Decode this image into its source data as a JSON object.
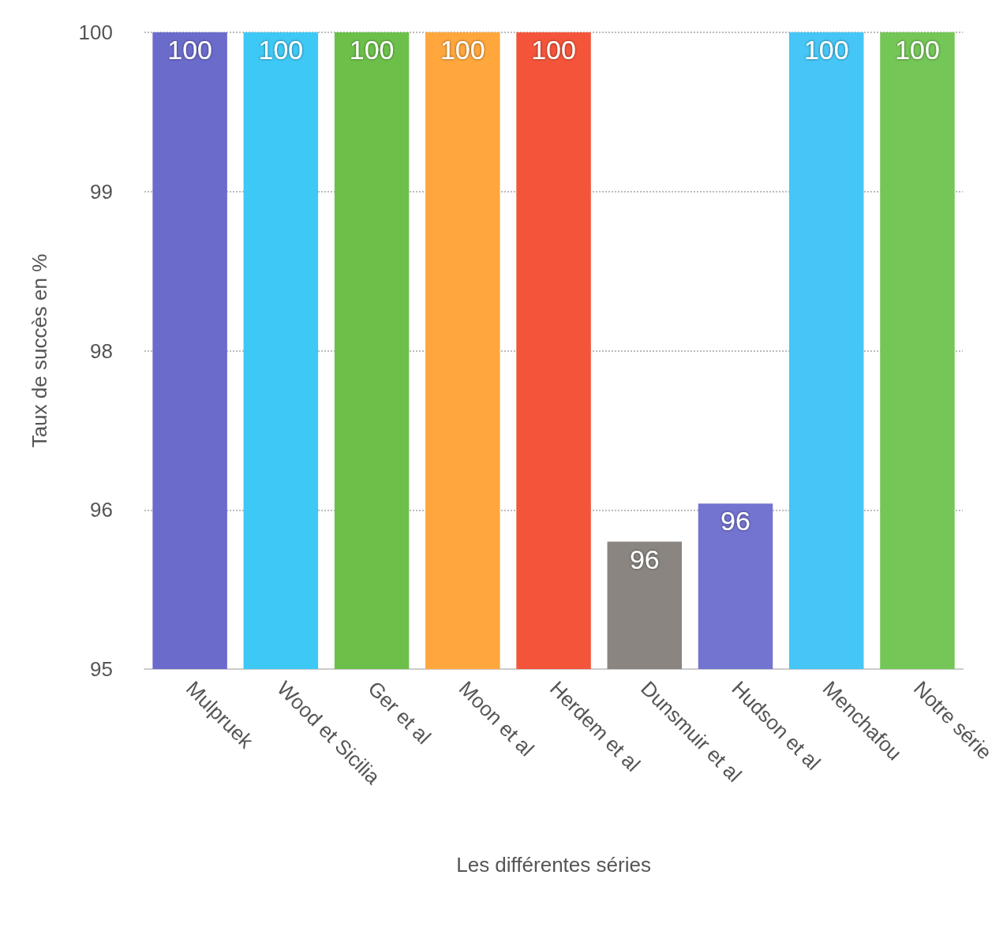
{
  "chart_data": {
    "type": "bar",
    "xlabel": "Les différentes séries",
    "ylabel": "Taux de succès en %",
    "categories": [
      "Mulpruek",
      "Wood et Sicilia",
      "Ger et al",
      "Moon et al",
      "Herdem et al",
      "Dunsmuir et al",
      "Hudson et al",
      "Menchafou",
      "Notre série"
    ],
    "values": [
      100,
      100,
      100,
      100,
      100,
      96.0,
      96.3,
      100,
      100
    ],
    "colors": [
      "#6b6bcc",
      "#3ec8f5",
      "#6cc04a",
      "#ffa63c",
      "#f4553a",
      "#8a8580",
      "#7373d0",
      "#45c6f6",
      "#74c656"
    ],
    "value_labels": [
      "100",
      "100",
      "100",
      "100",
      "100",
      "96",
      "96",
      "100",
      "100"
    ],
    "ylim": [
      95,
      100
    ],
    "yticks": [
      95,
      {
        "value": 96.25,
        "label": "96"
      },
      {
        "value": 97.5,
        "label": "98"
      },
      {
        "value": 98.75,
        "label": "99"
      },
      100
    ],
    "grid": "y"
  }
}
